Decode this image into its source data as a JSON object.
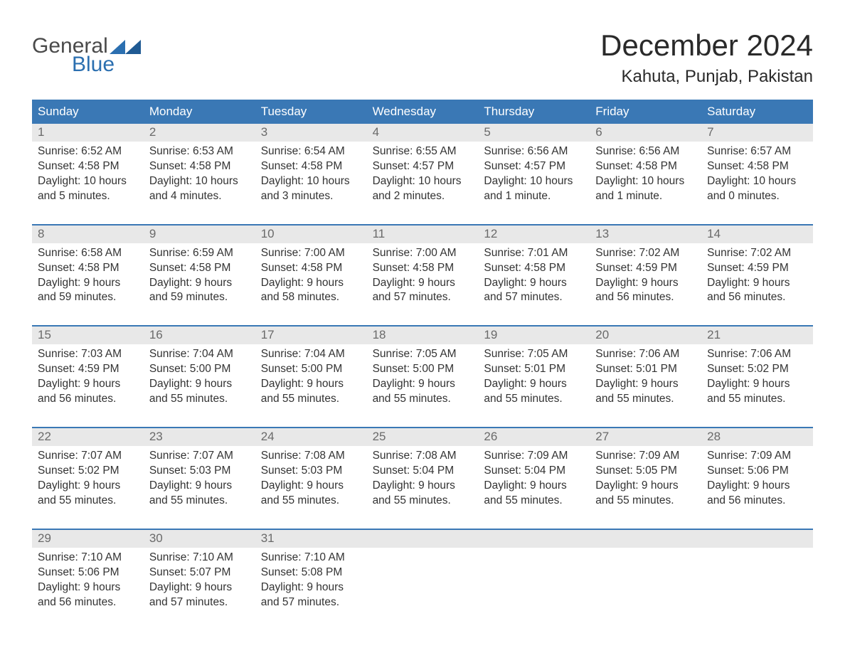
{
  "logo": {
    "text1": "General",
    "text2": "Blue",
    "tri_color": "#2b6fb0"
  },
  "title": "December 2024",
  "location": "Kahuta, Punjab, Pakistan",
  "colors": {
    "header_bg": "#3a78b5",
    "header_text": "#ffffff",
    "daynum_bg": "#e8e8e8",
    "daynum_text": "#6a6a6a",
    "body_text": "#333333",
    "week_border": "#3a78b5"
  },
  "weekdays": [
    "Sunday",
    "Monday",
    "Tuesday",
    "Wednesday",
    "Thursday",
    "Friday",
    "Saturday"
  ],
  "weeks": [
    [
      {
        "n": "1",
        "sunrise": "6:52 AM",
        "sunset": "4:58 PM",
        "day1": "Daylight: 10 hours",
        "day2": "and 5 minutes."
      },
      {
        "n": "2",
        "sunrise": "6:53 AM",
        "sunset": "4:58 PM",
        "day1": "Daylight: 10 hours",
        "day2": "and 4 minutes."
      },
      {
        "n": "3",
        "sunrise": "6:54 AM",
        "sunset": "4:58 PM",
        "day1": "Daylight: 10 hours",
        "day2": "and 3 minutes."
      },
      {
        "n": "4",
        "sunrise": "6:55 AM",
        "sunset": "4:57 PM",
        "day1": "Daylight: 10 hours",
        "day2": "and 2 minutes."
      },
      {
        "n": "5",
        "sunrise": "6:56 AM",
        "sunset": "4:57 PM",
        "day1": "Daylight: 10 hours",
        "day2": "and 1 minute."
      },
      {
        "n": "6",
        "sunrise": "6:56 AM",
        "sunset": "4:58 PM",
        "day1": "Daylight: 10 hours",
        "day2": "and 1 minute."
      },
      {
        "n": "7",
        "sunrise": "6:57 AM",
        "sunset": "4:58 PM",
        "day1": "Daylight: 10 hours",
        "day2": "and 0 minutes."
      }
    ],
    [
      {
        "n": "8",
        "sunrise": "6:58 AM",
        "sunset": "4:58 PM",
        "day1": "Daylight: 9 hours",
        "day2": "and 59 minutes."
      },
      {
        "n": "9",
        "sunrise": "6:59 AM",
        "sunset": "4:58 PM",
        "day1": "Daylight: 9 hours",
        "day2": "and 59 minutes."
      },
      {
        "n": "10",
        "sunrise": "7:00 AM",
        "sunset": "4:58 PM",
        "day1": "Daylight: 9 hours",
        "day2": "and 58 minutes."
      },
      {
        "n": "11",
        "sunrise": "7:00 AM",
        "sunset": "4:58 PM",
        "day1": "Daylight: 9 hours",
        "day2": "and 57 minutes."
      },
      {
        "n": "12",
        "sunrise": "7:01 AM",
        "sunset": "4:58 PM",
        "day1": "Daylight: 9 hours",
        "day2": "and 57 minutes."
      },
      {
        "n": "13",
        "sunrise": "7:02 AM",
        "sunset": "4:59 PM",
        "day1": "Daylight: 9 hours",
        "day2": "and 56 minutes."
      },
      {
        "n": "14",
        "sunrise": "7:02 AM",
        "sunset": "4:59 PM",
        "day1": "Daylight: 9 hours",
        "day2": "and 56 minutes."
      }
    ],
    [
      {
        "n": "15",
        "sunrise": "7:03 AM",
        "sunset": "4:59 PM",
        "day1": "Daylight: 9 hours",
        "day2": "and 56 minutes."
      },
      {
        "n": "16",
        "sunrise": "7:04 AM",
        "sunset": "5:00 PM",
        "day1": "Daylight: 9 hours",
        "day2": "and 55 minutes."
      },
      {
        "n": "17",
        "sunrise": "7:04 AM",
        "sunset": "5:00 PM",
        "day1": "Daylight: 9 hours",
        "day2": "and 55 minutes."
      },
      {
        "n": "18",
        "sunrise": "7:05 AM",
        "sunset": "5:00 PM",
        "day1": "Daylight: 9 hours",
        "day2": "and 55 minutes."
      },
      {
        "n": "19",
        "sunrise": "7:05 AM",
        "sunset": "5:01 PM",
        "day1": "Daylight: 9 hours",
        "day2": "and 55 minutes."
      },
      {
        "n": "20",
        "sunrise": "7:06 AM",
        "sunset": "5:01 PM",
        "day1": "Daylight: 9 hours",
        "day2": "and 55 minutes."
      },
      {
        "n": "21",
        "sunrise": "7:06 AM",
        "sunset": "5:02 PM",
        "day1": "Daylight: 9 hours",
        "day2": "and 55 minutes."
      }
    ],
    [
      {
        "n": "22",
        "sunrise": "7:07 AM",
        "sunset": "5:02 PM",
        "day1": "Daylight: 9 hours",
        "day2": "and 55 minutes."
      },
      {
        "n": "23",
        "sunrise": "7:07 AM",
        "sunset": "5:03 PM",
        "day1": "Daylight: 9 hours",
        "day2": "and 55 minutes."
      },
      {
        "n": "24",
        "sunrise": "7:08 AM",
        "sunset": "5:03 PM",
        "day1": "Daylight: 9 hours",
        "day2": "and 55 minutes."
      },
      {
        "n": "25",
        "sunrise": "7:08 AM",
        "sunset": "5:04 PM",
        "day1": "Daylight: 9 hours",
        "day2": "and 55 minutes."
      },
      {
        "n": "26",
        "sunrise": "7:09 AM",
        "sunset": "5:04 PM",
        "day1": "Daylight: 9 hours",
        "day2": "and 55 minutes."
      },
      {
        "n": "27",
        "sunrise": "7:09 AM",
        "sunset": "5:05 PM",
        "day1": "Daylight: 9 hours",
        "day2": "and 55 minutes."
      },
      {
        "n": "28",
        "sunrise": "7:09 AM",
        "sunset": "5:06 PM",
        "day1": "Daylight: 9 hours",
        "day2": "and 56 minutes."
      }
    ],
    [
      {
        "n": "29",
        "sunrise": "7:10 AM",
        "sunset": "5:06 PM",
        "day1": "Daylight: 9 hours",
        "day2": "and 56 minutes."
      },
      {
        "n": "30",
        "sunrise": "7:10 AM",
        "sunset": "5:07 PM",
        "day1": "Daylight: 9 hours",
        "day2": "and 57 minutes."
      },
      {
        "n": "31",
        "sunrise": "7:10 AM",
        "sunset": "5:08 PM",
        "day1": "Daylight: 9 hours",
        "day2": "and 57 minutes."
      },
      null,
      null,
      null,
      null
    ]
  ],
  "labels": {
    "sunrise": "Sunrise: ",
    "sunset": "Sunset: "
  }
}
